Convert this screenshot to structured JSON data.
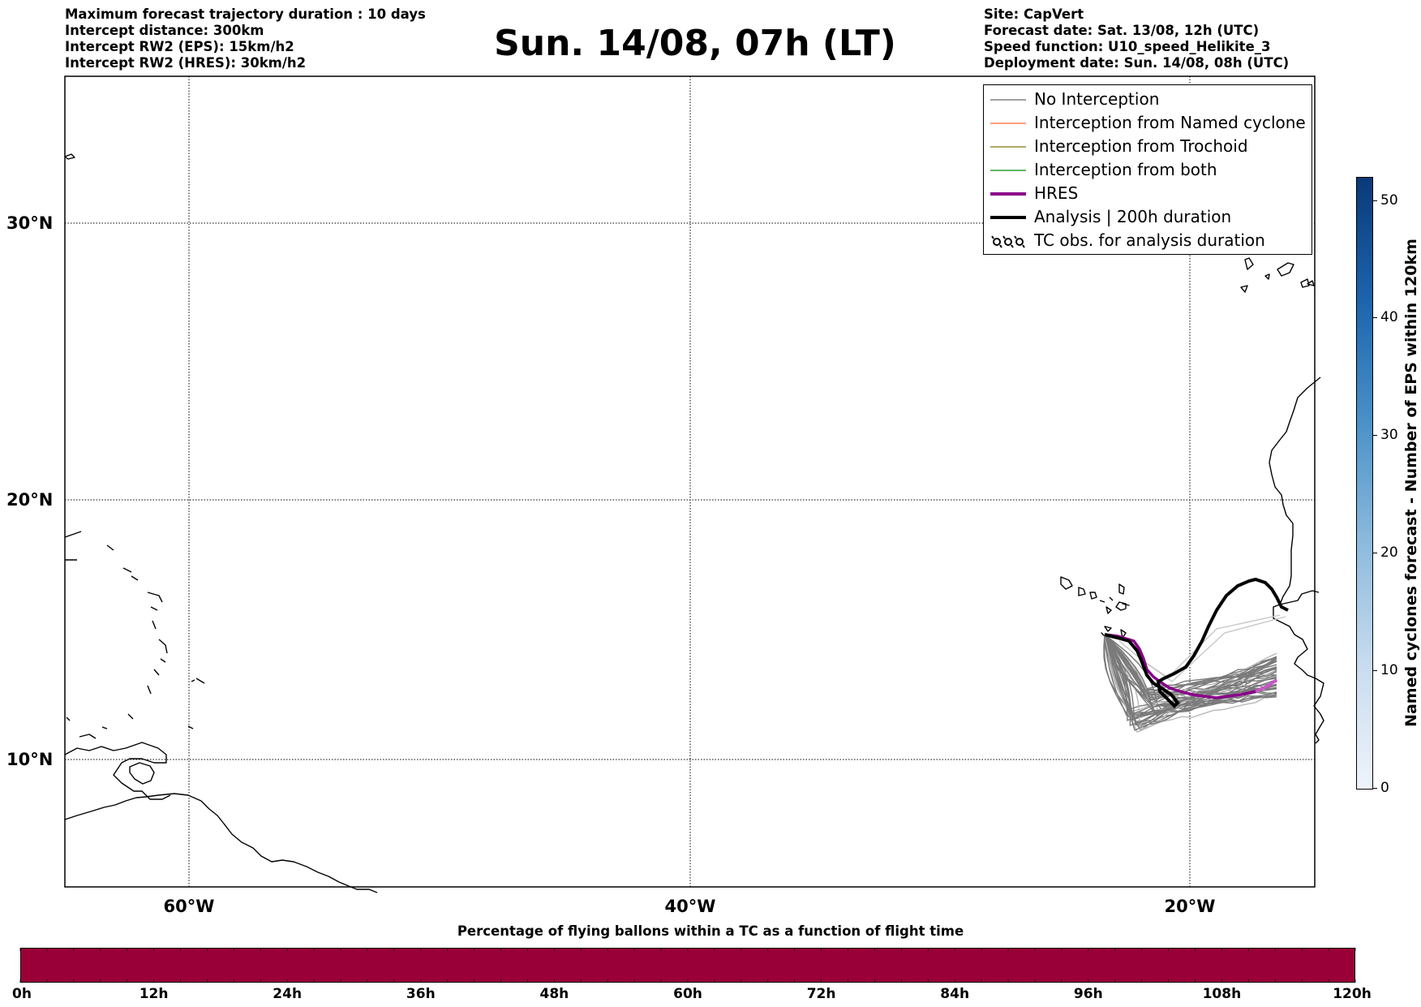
{
  "header": {
    "info_left": [
      "Maximum forecast trajectory duration : 10 days",
      "Intercept distance: 300km",
      "Intercept RW2 (EPS):  15km/h2",
      "Intercept RW2 (HRES): 30km/h2"
    ],
    "title": "Sun. 14/08, 07h (LT)",
    "info_right": [
      "Site: CapVert",
      "Forecast date: Sat. 13/08, 12h (UTC)",
      "Speed function: U10_speed_Helikite_3",
      "Deployment date: Sun. 14/08, 08h (UTC)"
    ]
  },
  "map": {
    "lat_labels": [
      "30°N",
      "20°N",
      "10°N"
    ],
    "lon_labels": [
      "60°W",
      "40°W",
      "20°W"
    ],
    "colors": {
      "no_interception": "#808080",
      "named_cyclone": "#ff7f50",
      "trochoid": "#9a8a30",
      "both": "#2ca02c",
      "hres": "#8b008b",
      "analysis": "#000000"
    }
  },
  "legend": {
    "items": [
      {
        "label": "No Interception",
        "icon": "gray-line"
      },
      {
        "label": "Interception from Named cyclone",
        "icon": "coral-line"
      },
      {
        "label": "Interception from Trochoid",
        "icon": "olive-line"
      },
      {
        "label": "Interception from both",
        "icon": "green-line"
      },
      {
        "label": "HRES",
        "icon": "purple-thick-line"
      },
      {
        "label": "Analysis | 200h duration",
        "icon": "black-thick-line"
      },
      {
        "label": "TC obs. for analysis duration",
        "icon": "cyclone-symbols"
      }
    ]
  },
  "colorbar": {
    "label": "Named cyclones forecast - Number of EPS within 120km",
    "ticks": [
      "50",
      "40",
      "30",
      "20",
      "10",
      "0"
    ]
  },
  "bottom": {
    "title": "Percentage of flying ballons within a TC as a function of flight time",
    "bar_color": "#9a0037",
    "ticks": [
      "0h",
      "12h",
      "24h",
      "36h",
      "48h",
      "60h",
      "72h",
      "84h",
      "96h",
      "108h",
      "120h"
    ]
  }
}
